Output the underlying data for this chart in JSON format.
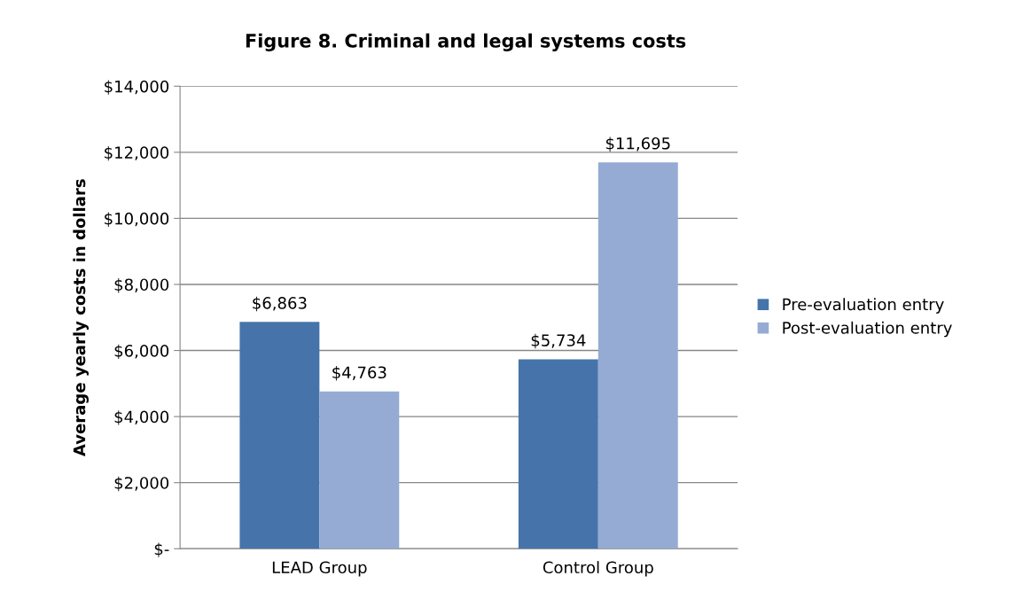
{
  "chart_data": {
    "type": "bar",
    "title": "Figure 8. Criminal and legal systems costs",
    "ylabel": "Average yearly costs in dollars",
    "categories": [
      "LEAD Group",
      "Control Group"
    ],
    "series": [
      {
        "name": "Pre-evaluation entry",
        "color": "#4674aa",
        "values": [
          6863,
          5734
        ],
        "value_labels": [
          "$6,863",
          "$5,734"
        ]
      },
      {
        "name": "Post-evaluation entry",
        "color": "#95abd3",
        "values": [
          4763,
          11695
        ],
        "value_labels": [
          "$4,763",
          "$11,695"
        ]
      }
    ],
    "ylim": [
      0,
      14000
    ],
    "yticks": [
      {
        "value": 0,
        "label": "$-"
      },
      {
        "value": 2000,
        "label": "$2,000"
      },
      {
        "value": 4000,
        "label": "$4,000"
      },
      {
        "value": 6000,
        "label": "$6,000"
      },
      {
        "value": 8000,
        "label": "$8,000"
      },
      {
        "value": 10000,
        "label": "$10,000"
      },
      {
        "value": 12000,
        "label": "$12,000"
      },
      {
        "value": 14000,
        "label": "$14,000"
      }
    ],
    "grid": "y",
    "legend": "right"
  }
}
